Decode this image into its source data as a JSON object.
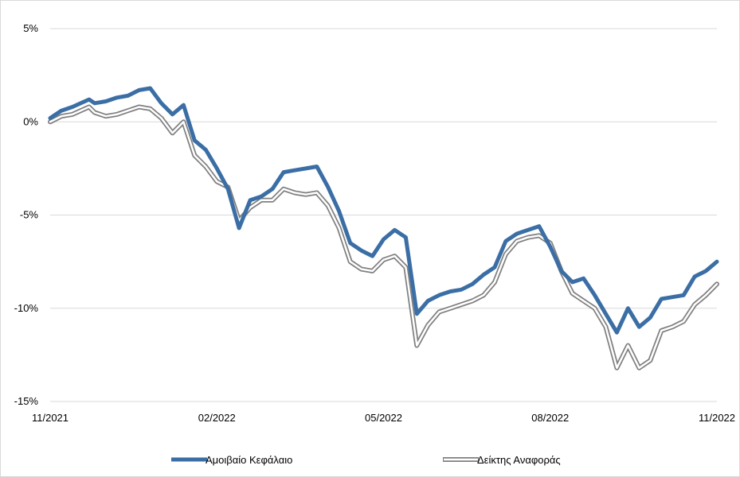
{
  "chart_data": {
    "type": "line",
    "x_labels": [
      "11/2021",
      "02/2022",
      "05/2022",
      "08/2022",
      "11/2022"
    ],
    "y_ticks": [
      "5%",
      "0%",
      "-5%",
      "-10%",
      "-15%"
    ],
    "ylim": [
      -15,
      5
    ],
    "grid": true,
    "legend_position": "bottom",
    "series": [
      {
        "name": "Αμοιβαίο Κεφάλαιο",
        "color": "#3a6ea5",
        "style": "thick-solid",
        "x": [
          0,
          0.2,
          0.4,
          0.7,
          0.8,
          1.0,
          1.2,
          1.4,
          1.6,
          1.8,
          2.0,
          2.2,
          2.4,
          2.6,
          2.8,
          3.0,
          3.2,
          3.4,
          3.6,
          3.8,
          4.0,
          4.2,
          4.4,
          4.6,
          4.8,
          5.0,
          5.2,
          5.4,
          5.6,
          5.8,
          6.0,
          6.2,
          6.4,
          6.6,
          6.8,
          7.0,
          7.2,
          7.4,
          7.6,
          7.8,
          8.0,
          8.2,
          8.4,
          8.6,
          8.8,
          9.0,
          9.2,
          9.4,
          9.6,
          9.8,
          10.0,
          10.2,
          10.4,
          10.6,
          10.8,
          11.0,
          11.2,
          11.4,
          11.6,
          11.8,
          12.0
        ],
        "values": [
          0.2,
          0.6,
          0.8,
          1.2,
          1.0,
          1.1,
          1.3,
          1.4,
          1.7,
          1.8,
          1.0,
          0.4,
          0.9,
          -1.0,
          -1.5,
          -2.5,
          -3.6,
          -5.7,
          -4.2,
          -4.0,
          -3.6,
          -2.7,
          -2.6,
          -2.5,
          -2.4,
          -3.5,
          -4.8,
          -6.5,
          -6.9,
          -7.2,
          -6.3,
          -5.8,
          -6.2,
          -10.3,
          -9.6,
          -9.3,
          -9.1,
          -9.0,
          -8.7,
          -8.2,
          -7.8,
          -6.4,
          -6.0,
          -5.8,
          -5.6,
          -6.7,
          -8.0,
          -8.6,
          -8.4,
          -9.3,
          -10.3,
          -11.3,
          -10.0,
          -11.0,
          -10.5,
          -9.5,
          -9.4,
          -9.3,
          -8.3,
          -8.0,
          -7.5
        ]
      },
      {
        "name": "Δείκτης Αναφοράς",
        "color": "#808080",
        "style": "double-outline",
        "x": [
          0,
          0.2,
          0.4,
          0.7,
          0.8,
          1.0,
          1.2,
          1.4,
          1.6,
          1.8,
          2.0,
          2.2,
          2.4,
          2.6,
          2.8,
          3.0,
          3.2,
          3.4,
          3.6,
          3.8,
          4.0,
          4.2,
          4.4,
          4.6,
          4.8,
          5.0,
          5.2,
          5.4,
          5.6,
          5.8,
          6.0,
          6.2,
          6.4,
          6.6,
          6.8,
          7.0,
          7.2,
          7.4,
          7.6,
          7.8,
          8.0,
          8.2,
          8.4,
          8.6,
          8.8,
          9.0,
          9.2,
          9.4,
          9.6,
          9.8,
          10.0,
          10.2,
          10.4,
          10.6,
          10.8,
          11.0,
          11.2,
          11.4,
          11.6,
          11.8,
          12.0
        ],
        "values": [
          0.0,
          0.3,
          0.4,
          0.8,
          0.5,
          0.3,
          0.4,
          0.6,
          0.8,
          0.7,
          0.2,
          -0.6,
          0.0,
          -1.8,
          -2.4,
          -3.2,
          -3.5,
          -5.3,
          -4.6,
          -4.2,
          -4.2,
          -3.6,
          -3.8,
          -3.9,
          -3.8,
          -4.5,
          -5.7,
          -7.5,
          -7.9,
          -8.0,
          -7.4,
          -7.2,
          -7.8,
          -12.0,
          -10.9,
          -10.2,
          -10.0,
          -9.8,
          -9.6,
          -9.3,
          -8.6,
          -7.1,
          -6.4,
          -6.2,
          -6.1,
          -6.5,
          -8.0,
          -9.2,
          -9.6,
          -10.0,
          -11.0,
          -13.2,
          -12.0,
          -13.2,
          -12.8,
          -11.2,
          -11.0,
          -10.7,
          -9.8,
          -9.3,
          -8.7
        ]
      }
    ]
  }
}
